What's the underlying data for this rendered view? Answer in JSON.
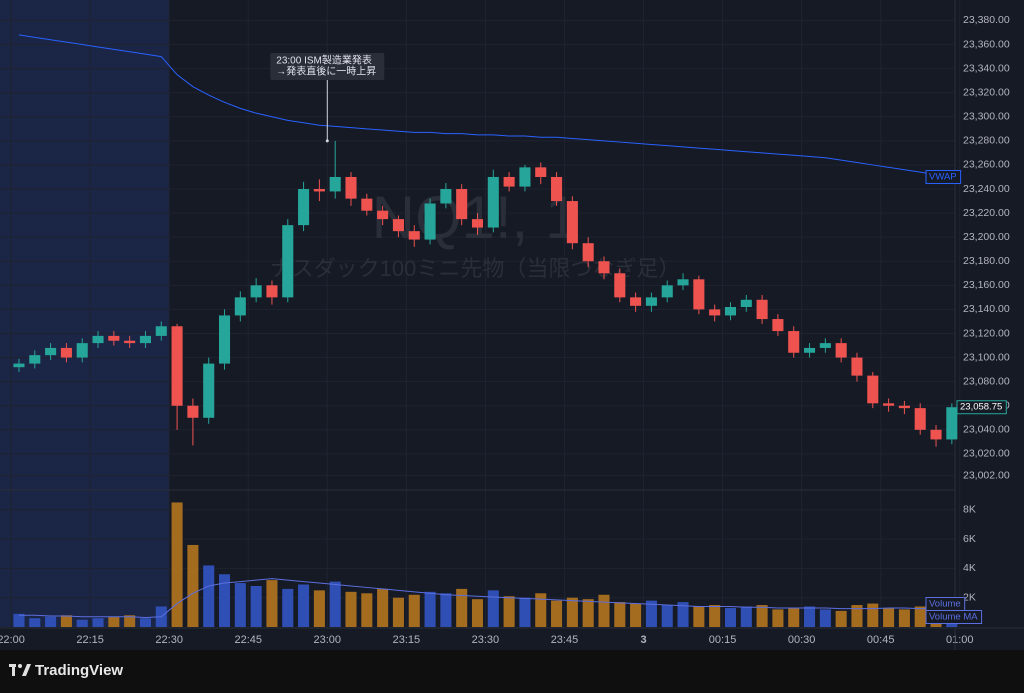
{
  "chart_data": {
    "type": "candlestick",
    "watermark": {
      "symbol": "NQ1!, 1",
      "name": "ナスダック100ミニ先物（当限つなぎ足）"
    },
    "xlim": [
      -2.1,
      179.1
    ],
    "xticks": [
      {
        "value": 0,
        "label": "22:00"
      },
      {
        "value": 15,
        "label": "22:15"
      },
      {
        "value": 30,
        "label": "22:30"
      },
      {
        "value": 45,
        "label": "22:45"
      },
      {
        "value": 60,
        "label": "23:00"
      },
      {
        "value": 75,
        "label": "23:15"
      },
      {
        "value": 90,
        "label": "23:30"
      },
      {
        "value": 105,
        "label": "23:45"
      },
      {
        "value": 120,
        "label": "3"
      },
      {
        "value": 135,
        "label": "00:15"
      },
      {
        "value": 150,
        "label": "00:30"
      },
      {
        "value": 165,
        "label": "00:45"
      },
      {
        "value": 180,
        "label": "01:00"
      }
    ],
    "highlight_x": [
      -2.1,
      30
    ],
    "ylim": [
      22990,
      23397
    ],
    "yticks": [
      {
        "value": 23002,
        "label": "23,002.00"
      },
      {
        "value": 23020,
        "label": "23,020.00"
      },
      {
        "value": 23040,
        "label": "23,040.00"
      },
      {
        "value": 23060,
        "label": "23,060.00"
      },
      {
        "value": 23080,
        "label": "23,080.00"
      },
      {
        "value": 23100,
        "label": "23,100.00"
      },
      {
        "value": 23120,
        "label": "23,120.00"
      },
      {
        "value": 23140,
        "label": "23,140.00"
      },
      {
        "value": 23160,
        "label": "23,160.00"
      },
      {
        "value": 23180,
        "label": "23,180.00"
      },
      {
        "value": 23200,
        "label": "23,200.00"
      },
      {
        "value": 23220,
        "label": "23,220.00"
      },
      {
        "value": 23240,
        "label": "23,240.00"
      },
      {
        "value": 23260,
        "label": "23,260.00"
      },
      {
        "value": 23280,
        "label": "23,280.00"
      },
      {
        "value": 23300,
        "label": "23,300.00"
      },
      {
        "value": 23320,
        "label": "23,320.00"
      },
      {
        "value": 23340,
        "label": "23,340.00"
      },
      {
        "value": 23360,
        "label": "23,360.00"
      },
      {
        "value": 23380,
        "label": "23,380.00"
      }
    ],
    "grid": true,
    "up_color": "#26a69a",
    "down_color": "#ef5350",
    "x": [
      1.5,
      4.5,
      7.5,
      10.5,
      13.5,
      16.5,
      19.5,
      22.5,
      25.5,
      28.5,
      31.5,
      34.5,
      37.5,
      40.5,
      43.5,
      46.5,
      49.5,
      52.5,
      55.5,
      58.5,
      61.5,
      64.5,
      67.5,
      70.5,
      73.5,
      76.5,
      79.5,
      82.5,
      85.5,
      88.5,
      91.5,
      94.5,
      97.5,
      100.5,
      103.5,
      106.5,
      109.5,
      112.5,
      115.5,
      118.5,
      121.5,
      124.5,
      127.5,
      130.5,
      133.5,
      136.5,
      139.5,
      142.5,
      145.5,
      148.5,
      151.5,
      154.5,
      157.5,
      160.5,
      163.5,
      166.5,
      169.5,
      172.5,
      175.5,
      178.5
    ],
    "open": [
      23092,
      23095,
      23102,
      23108,
      23100,
      23112,
      23118,
      23114,
      23112,
      23118,
      23126,
      23060,
      23050,
      23095,
      23135,
      23150,
      23160,
      23150,
      23210,
      23240,
      23238,
      23250,
      23232,
      23222,
      23215,
      23205,
      23198,
      23228,
      23240,
      23215,
      23208,
      23250,
      23242,
      23258,
      23250,
      23230,
      23195,
      23180,
      23170,
      23150,
      23143,
      23150,
      23160,
      23165,
      23140,
      23135,
      23142,
      23148,
      23132,
      23122,
      23104,
      23108,
      23112,
      23100,
      23085,
      23062,
      23060,
      23058,
      23040,
      23032
    ],
    "high": [
      23099,
      23106,
      23112,
      23112,
      23116,
      23122,
      23122,
      23118,
      23122,
      23130,
      23128,
      23066,
      23100,
      23140,
      23155,
      23166,
      23164,
      23215,
      23246,
      23248,
      23280,
      23254,
      23236,
      23226,
      23218,
      23210,
      23232,
      23245,
      23244,
      23220,
      23256,
      23254,
      23260,
      23262,
      23254,
      23234,
      23200,
      23184,
      23174,
      23154,
      23154,
      23164,
      23170,
      23168,
      23144,
      23146,
      23152,
      23152,
      23136,
      23126,
      23112,
      23116,
      23116,
      23104,
      23088,
      23066,
      23064,
      23062,
      23044,
      23062
    ],
    "low": [
      23088,
      23091,
      23098,
      23096,
      23096,
      23108,
      23110,
      23108,
      23108,
      23114,
      23040,
      23027,
      23045,
      23090,
      23130,
      23146,
      23144,
      23146,
      23205,
      23230,
      23232,
      23226,
      23218,
      23210,
      23200,
      23192,
      23194,
      23224,
      23210,
      23202,
      23204,
      23238,
      23238,
      23244,
      23226,
      23190,
      23175,
      23165,
      23146,
      23138,
      23138,
      23146,
      23156,
      23136,
      23130,
      23131,
      23138,
      23128,
      23118,
      23100,
      23100,
      23104,
      23096,
      23080,
      23058,
      23055,
      23053,
      23036,
      23026,
      23028
    ],
    "close": [
      23095,
      23102,
      23108,
      23100,
      23112,
      23118,
      23114,
      23112,
      23118,
      23126,
      23060,
      23050,
      23095,
      23135,
      23150,
      23160,
      23150,
      23210,
      23240,
      23238,
      23250,
      23232,
      23222,
      23215,
      23205,
      23198,
      23228,
      23240,
      23215,
      23208,
      23250,
      23242,
      23258,
      23250,
      23230,
      23195,
      23180,
      23170,
      23150,
      23143,
      23150,
      23160,
      23165,
      23140,
      23135,
      23142,
      23148,
      23132,
      23122,
      23104,
      23108,
      23112,
      23100,
      23085,
      23062,
      23060,
      23058,
      23040,
      23032,
      23058.75
    ],
    "last_label": "23,058.75",
    "series": [
      {
        "name": "VWAP",
        "color": "#2962ff",
        "values": [
          23368,
          23366,
          23364,
          23362,
          23360,
          23358,
          23356,
          23354,
          23352,
          23350,
          23335,
          23325,
          23318,
          23312,
          23307,
          23303,
          23300,
          23297,
          23295,
          23293,
          23292,
          23291,
          23290,
          23289,
          23288,
          23287,
          23287,
          23286,
          23286,
          23285,
          23285,
          23284,
          23284,
          23283,
          23283,
          23282,
          23281,
          23280,
          23279,
          23278,
          23277,
          23276,
          23275,
          23274,
          23273,
          23272,
          23271,
          23270,
          23269,
          23268,
          23267,
          23266,
          23264,
          23262,
          23260,
          23258,
          23256,
          23254,
          23252,
          23250
        ]
      }
    ],
    "annotation": {
      "x": 60,
      "y": 23280,
      "lines": [
        "23:00 ISM製造業発表",
        "→発表直後に一時上昇"
      ]
    },
    "volume": {
      "name": "Volume",
      "up_color": "#2f4fb5",
      "down_color": "#a46c1f",
      "ylim": [
        0,
        9350
      ],
      "yticks": [
        {
          "value": 2000,
          "label": "2K"
        },
        {
          "value": 4000,
          "label": "4K"
        },
        {
          "value": 6000,
          "label": "6K"
        },
        {
          "value": 8000,
          "label": "8K"
        }
      ],
      "values": [
        900,
        600,
        700,
        800,
        500,
        600,
        700,
        800,
        600,
        1400,
        8500,
        5600,
        4200,
        3600,
        3000,
        2800,
        3200,
        2600,
        2900,
        2500,
        3100,
        2400,
        2300,
        2600,
        2000,
        2200,
        2400,
        2300,
        2600,
        1900,
        2500,
        2100,
        2000,
        2300,
        1800,
        2000,
        1900,
        2200,
        1700,
        1600,
        1800,
        1500,
        1700,
        1400,
        1500,
        1300,
        1400,
        1500,
        1200,
        1300,
        1400,
        1200,
        1100,
        1500,
        1600,
        1300,
        1200,
        1400,
        1100,
        1000
      ],
      "ma": {
        "name": "Volume MA",
        "color": "#5c6fe0",
        "values": [
          800,
          800,
          750,
          750,
          700,
          700,
          700,
          700,
          650,
          700,
          1600,
          2300,
          2800,
          3000,
          3100,
          3200,
          3300,
          3200,
          3100,
          3000,
          2900,
          2800,
          2700,
          2600,
          2500,
          2400,
          2300,
          2200,
          2150,
          2100,
          2050,
          2000,
          1950,
          1900,
          1850,
          1800,
          1750,
          1700,
          1650,
          1600,
          1550,
          1500,
          1450,
          1400,
          1400,
          1400,
          1350,
          1350,
          1300,
          1300,
          1300,
          1300,
          1250,
          1250,
          1250,
          1300,
          1300,
          1250,
          1250,
          1200
        ]
      }
    },
    "footer": "TradingView"
  }
}
